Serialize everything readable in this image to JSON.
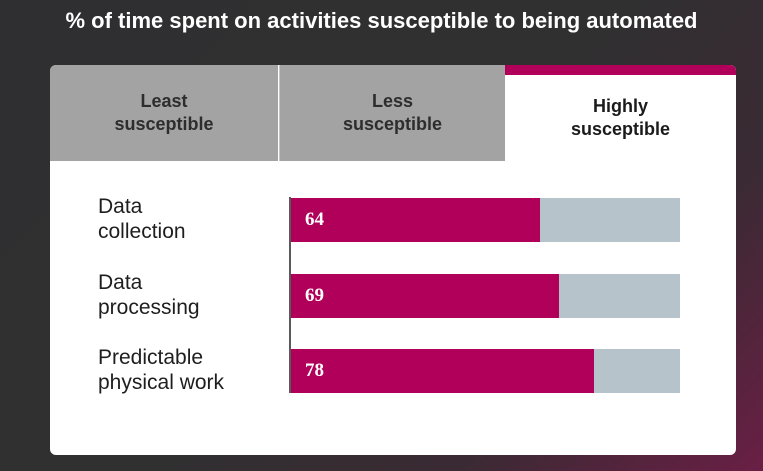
{
  "title": "% of time spent on activities susceptible to being automated",
  "tabs": [
    {
      "label": "Least\nsusceptible",
      "active": false
    },
    {
      "label": "Less\nsusceptible",
      "active": false
    },
    {
      "label": "Highly\nsusceptible",
      "active": true
    }
  ],
  "colors": {
    "accent": "#b0005a",
    "track": "#b6c3cb",
    "inactive_tab": "#a3a3a3"
  },
  "chart_data": {
    "type": "bar",
    "orientation": "horizontal",
    "categories": [
      "Data\ncollection",
      "Data\nprocessing",
      "Predictable\nphysical work"
    ],
    "values": [
      64,
      69,
      78
    ],
    "value_labels": [
      "64",
      "69",
      "78"
    ],
    "xlim": [
      0,
      100
    ],
    "grid": false,
    "title": "% of time spent on activities susceptible to being automated"
  }
}
